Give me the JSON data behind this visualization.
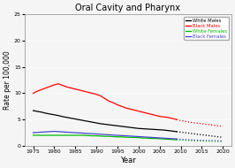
{
  "title": "Oral Cavity and Pharynx",
  "xlabel": "Year",
  "ylabel": "Rate per 100,000",
  "xlim": [
    1973,
    2022
  ],
  "ylim": [
    0,
    25
  ],
  "yticks": [
    0,
    5,
    10,
    15,
    20,
    25
  ],
  "xticks": [
    1975,
    1980,
    1985,
    1990,
    1995,
    2000,
    2005,
    2010,
    2015,
    2020
  ],
  "solid_years": [
    1975,
    1976,
    1977,
    1978,
    1979,
    1980,
    1981,
    1982,
    1983,
    1984,
    1985,
    1986,
    1987,
    1988,
    1989,
    1990,
    1991,
    1992,
    1993,
    1994,
    1995,
    1996,
    1997,
    1998,
    1999,
    2000,
    2001,
    2002,
    2003,
    2004,
    2005,
    2006,
    2007,
    2008,
    2009
  ],
  "dotted_years": [
    2009,
    2010,
    2011,
    2012,
    2013,
    2014,
    2015,
    2016,
    2017,
    2018,
    2019,
    2020
  ],
  "series": {
    "white_males": {
      "color": "#000000",
      "label": "White Males",
      "solid_values": [
        6.7,
        6.55,
        6.4,
        6.2,
        6.05,
        5.9,
        5.75,
        5.55,
        5.4,
        5.25,
        5.1,
        4.95,
        4.8,
        4.65,
        4.5,
        4.35,
        4.2,
        4.1,
        4.0,
        3.9,
        3.8,
        3.7,
        3.6,
        3.5,
        3.4,
        3.3,
        3.25,
        3.2,
        3.15,
        3.1,
        3.05,
        3.0,
        2.9,
        2.8,
        2.7
      ],
      "dotted_values": [
        2.7,
        2.6,
        2.5,
        2.4,
        2.3,
        2.2,
        2.1,
        2.0,
        1.9,
        1.8,
        1.7,
        1.6
      ]
    },
    "black_males": {
      "color": "#FF0000",
      "label": "Black Males",
      "solid_values": [
        10.0,
        10.4,
        10.7,
        11.0,
        11.3,
        11.6,
        11.8,
        11.5,
        11.2,
        11.0,
        10.8,
        10.6,
        10.4,
        10.2,
        10.0,
        9.8,
        9.5,
        9.0,
        8.5,
        8.2,
        7.8,
        7.5,
        7.2,
        7.0,
        6.8,
        6.6,
        6.4,
        6.2,
        6.0,
        5.8,
        5.6,
        5.5,
        5.4,
        5.2,
        5.0
      ],
      "dotted_values": [
        5.0,
        4.8,
        4.7,
        4.5,
        4.4,
        4.3,
        4.2,
        4.1,
        4.0,
        3.9,
        3.8,
        3.7
      ]
    },
    "white_females": {
      "color": "#00BB00",
      "label": "White Females",
      "solid_values": [
        2.0,
        2.0,
        2.0,
        2.0,
        2.0,
        2.0,
        2.0,
        2.0,
        2.0,
        2.0,
        2.0,
        2.0,
        2.0,
        1.95,
        1.9,
        1.9,
        1.85,
        1.8,
        1.8,
        1.75,
        1.7,
        1.7,
        1.65,
        1.6,
        1.6,
        1.55,
        1.5,
        1.45,
        1.4,
        1.4,
        1.35,
        1.3,
        1.25,
        1.2,
        1.15
      ],
      "dotted_values": [
        1.15,
        1.1,
        1.05,
        1.0,
        0.98,
        0.95,
        0.92,
        0.9,
        0.88,
        0.85,
        0.83,
        0.8
      ]
    },
    "black_females": {
      "color": "#4444CC",
      "label": "Black Females",
      "solid_values": [
        2.5,
        2.55,
        2.6,
        2.65,
        2.7,
        2.75,
        2.7,
        2.65,
        2.6,
        2.55,
        2.5,
        2.45,
        2.4,
        2.35,
        2.3,
        2.25,
        2.2,
        2.15,
        2.1,
        2.05,
        2.0,
        1.95,
        1.9,
        1.85,
        1.8,
        1.75,
        1.7,
        1.65,
        1.6,
        1.55,
        1.5,
        1.45,
        1.4,
        1.35,
        1.3
      ],
      "dotted_values": [
        1.3,
        1.25,
        1.2,
        1.15,
        1.1,
        1.08,
        1.05,
        1.02,
        1.0,
        0.98,
        0.95,
        0.92
      ]
    }
  },
  "bg_color": "#f0f0f0",
  "legend_label_colors": {
    "White Males": "#000000",
    "Black Males": "#FF0000",
    "White Females": "#00BB00",
    "Black Females": "#4444CC"
  }
}
